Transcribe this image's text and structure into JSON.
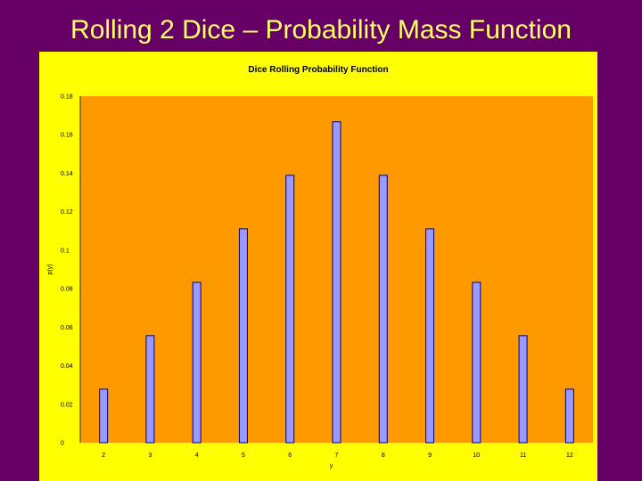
{
  "slide": {
    "title": "Rolling 2 Dice – Probability Mass Function"
  },
  "colors": {
    "background": "#660066",
    "title": "#ffff66",
    "frame": "#ffff00",
    "plot_area": "#ff9900",
    "bar_fill": "#9999ff",
    "bar_stroke": "#000080"
  },
  "chart_data": {
    "type": "bar",
    "title": "Dice Rolling Probability Function",
    "xlabel": "y",
    "ylabel": "p(y)",
    "categories": [
      "2",
      "3",
      "4",
      "5",
      "6",
      "7",
      "8",
      "9",
      "10",
      "11",
      "12"
    ],
    "values": [
      0.0278,
      0.0556,
      0.0833,
      0.1111,
      0.1389,
      0.1667,
      0.1389,
      0.1111,
      0.0833,
      0.0556,
      0.0278
    ],
    "yticks": [
      "0",
      "0.02",
      "0.04",
      "0.06",
      "0.08",
      "0.1",
      "0.12",
      "0.14",
      "0.16",
      "0.18"
    ],
    "ylim": [
      0,
      0.18
    ],
    "grid": false,
    "legend": "none"
  }
}
